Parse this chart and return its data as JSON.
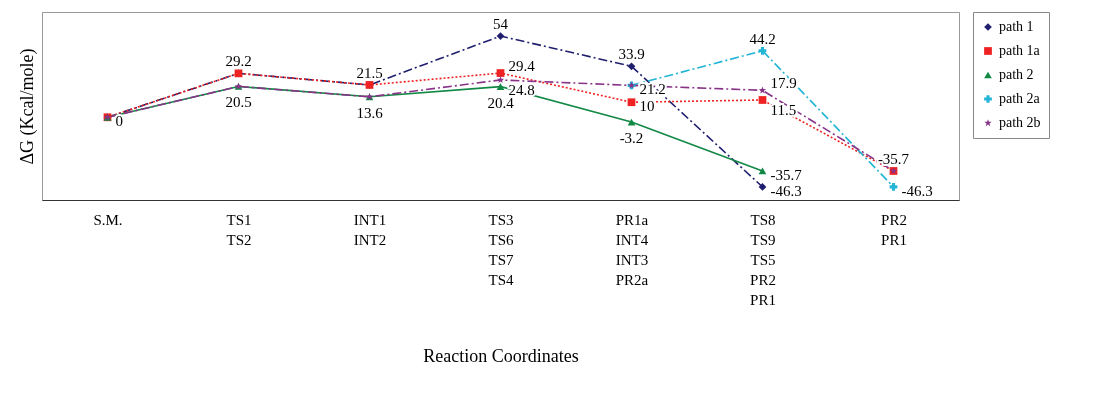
{
  "chart_data": {
    "type": "line",
    "xlabel": "Reaction Coordinates",
    "ylabel": "ΔG (Kcal/mole)",
    "categories": [
      "S.M.",
      "TS1\nTS2",
      "INT1\nINT2",
      "TS3\nTS6\nTS7\nTS4",
      "PR1a\nINT4\nINT3\nPR2a",
      "TS8\nTS9\nTS5\nPR2\nPR1",
      "PR2\nPR1"
    ],
    "ylim": [
      -55,
      70
    ],
    "tick_labels": "x",
    "grid": false,
    "legend": "right",
    "series": [
      {
        "name": "path 1",
        "color": "#1f1f6e",
        "marker": "diamond",
        "line_style": "dashed",
        "values": [
          0,
          29.2,
          21.5,
          54,
          33.9,
          -46.3,
          null
        ],
        "value_labels": [
          "0",
          "29.2",
          "21.5",
          "54",
          "33.9",
          "-46.3",
          null
        ]
      },
      {
        "name": "path 1a",
        "color": "#ee2222",
        "marker": "square",
        "line_style": "dotted",
        "values": [
          0,
          29.2,
          21.5,
          29.4,
          10,
          11.5,
          -35.7
        ],
        "value_labels": [
          null,
          null,
          null,
          "29.4",
          "10",
          "11.5",
          "-35.7"
        ]
      },
      {
        "name": "path 2",
        "color": "#118844",
        "marker": "triangle",
        "line_style": "solid",
        "values": [
          0,
          20.5,
          13.6,
          20.4,
          -3.2,
          -35.7,
          null
        ],
        "value_labels": [
          null,
          "20.5",
          "13.6",
          "20.4",
          "-3.2",
          "-35.7",
          null
        ]
      },
      {
        "name": "path 2a",
        "color": "#22b5d5",
        "marker": "cross",
        "line_style": "dashed",
        "values": [
          null,
          null,
          null,
          null,
          21.2,
          44.2,
          -46.3
        ],
        "value_labels": [
          null,
          null,
          null,
          null,
          null,
          "44.2",
          "-46.3"
        ]
      },
      {
        "name": "path 2b",
        "color": "#883388",
        "marker": "star",
        "line_style": "dashed",
        "values": [
          0,
          20.5,
          13.6,
          24.8,
          21.2,
          17.9,
          -35.7
        ],
        "value_labels": [
          null,
          null,
          null,
          "24.8",
          "21.2",
          "17.9",
          null
        ]
      }
    ]
  }
}
